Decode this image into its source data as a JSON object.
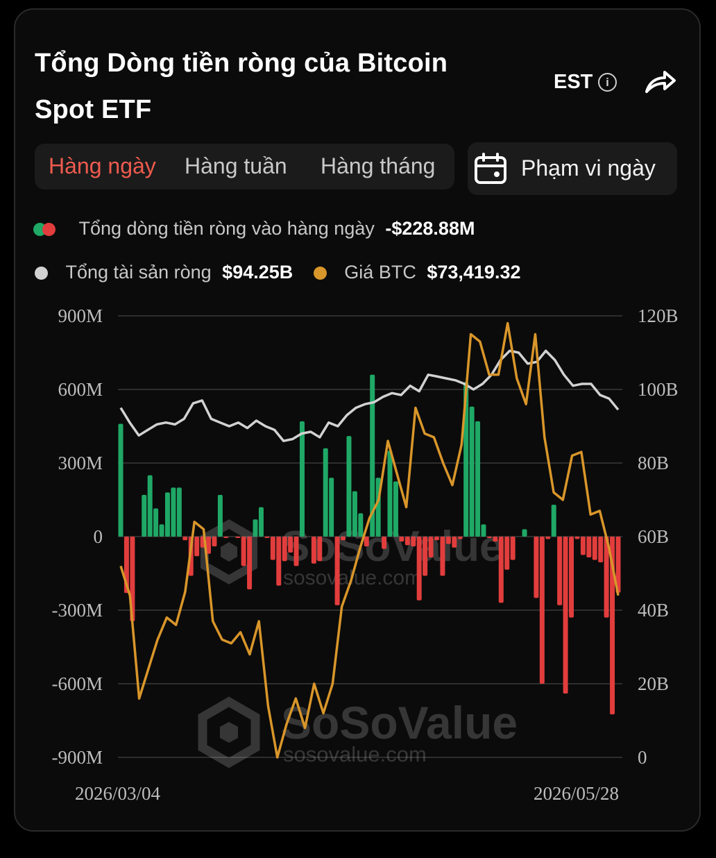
{
  "header": {
    "title": "Tổng Dòng tiền ròng của Bitcoin Spot ETF",
    "timezone": "EST",
    "info_icon": "info-icon",
    "share_icon": "share-icon"
  },
  "tabs": [
    {
      "label": "Hàng ngày",
      "active": true
    },
    {
      "label": "Hàng tuần",
      "active": false
    },
    {
      "label": "Hàng tháng",
      "active": false
    }
  ],
  "date_range": {
    "label": "Phạm vi ngày",
    "icon": "calendar-icon"
  },
  "legend": {
    "net_inflow_label": "Tổng dòng tiền ròng vào hàng ngày",
    "net_inflow_value": "-$228.88M",
    "net_assets_label": "Tổng tài sản ròng",
    "net_assets_value": "$94.25B",
    "btc_price_label": "Giá BTC",
    "btc_price_value": "$73,419.32"
  },
  "colors": {
    "positive": "#1fa866",
    "negative": "#e23d3d",
    "net_assets_line": "#d2d2d2",
    "btc_price_line": "#d9962a",
    "accent": "#ef5b4f"
  },
  "watermark": {
    "brand": "SoSoValue",
    "site": "sosovalue.com"
  },
  "chart_data": {
    "type": "bar",
    "x_start_label": "2026/03/04",
    "x_end_label": "2026/05/28",
    "y_left_ticks": [
      "900M",
      "600M",
      "300M",
      "0",
      "-300M",
      "-600M",
      "-900M"
    ],
    "y_right_ticks": [
      "120B",
      "100B",
      "80B",
      "60B",
      "40B",
      "20B",
      "0"
    ],
    "y_left_range": [
      -900,
      900
    ],
    "y_right_range": [
      0,
      120
    ],
    "grid": true,
    "series": [
      {
        "name": "Tổng dòng tiền ròng vào hàng ngày",
        "kind": "bar",
        "unit": "M",
        "values": [
          460,
          -230,
          -345,
          0,
          170,
          250,
          115,
          50,
          180,
          200,
          200,
          -15,
          -160,
          -80,
          -45,
          -70,
          -40,
          170,
          -5,
          0,
          -5,
          -120,
          -215,
          70,
          120,
          -5,
          -95,
          -200,
          -100,
          -65,
          -120,
          470,
          0,
          -110,
          -100,
          360,
          240,
          -280,
          -15,
          410,
          185,
          95,
          -40,
          660,
          240,
          -50,
          350,
          225,
          -20,
          -35,
          -40,
          -260,
          -160,
          -85,
          -15,
          -160,
          -30,
          -45,
          -10,
          630,
          530,
          470,
          50,
          -5,
          -20,
          -270,
          -135,
          -95,
          0,
          30,
          0,
          -250,
          -600,
          -10,
          130,
          -280,
          -640,
          -330,
          -10,
          -75,
          -85,
          -95,
          -105,
          -330,
          -725,
          -228.88
        ],
        "color_positive": "#1fa866",
        "color_negative": "#e23d3d"
      },
      {
        "name": "Tổng tài sản ròng",
        "kind": "line",
        "axis": "right",
        "unit": "B",
        "values": [
          95,
          91,
          87.5,
          89,
          90.5,
          91,
          90.5,
          92,
          96.2,
          97,
          92,
          91,
          90,
          91,
          89.5,
          91.5,
          90,
          89,
          86,
          86.5,
          88,
          88.5,
          87,
          91,
          90,
          93,
          95,
          96,
          96.5,
          98,
          99,
          98.5,
          101,
          99.5,
          104,
          103.5,
          103,
          102.5,
          101.5,
          100,
          101.5,
          104,
          108,
          110.5,
          110,
          107,
          107.5,
          110.5,
          108,
          104,
          101,
          101.5,
          101.5,
          98.5,
          97.5,
          94.5
        ],
        "color": "#d2d2d2"
      },
      {
        "name": "Giá BTC",
        "kind": "line",
        "axis": "right",
        "unit": "B",
        "values": [
          52,
          44,
          16,
          24,
          32,
          38,
          36,
          45,
          64,
          62,
          37,
          32,
          31,
          34,
          28,
          37,
          14,
          0,
          9,
          16,
          8,
          20,
          12,
          20,
          41,
          48,
          57,
          65,
          70,
          86,
          77,
          68,
          95,
          88,
          87,
          80,
          74,
          85,
          115,
          113,
          104,
          104,
          118,
          103,
          96,
          115,
          87,
          72,
          70,
          82,
          83,
          66,
          67,
          57,
          44
        ],
        "color": "#d9962a"
      }
    ]
  }
}
